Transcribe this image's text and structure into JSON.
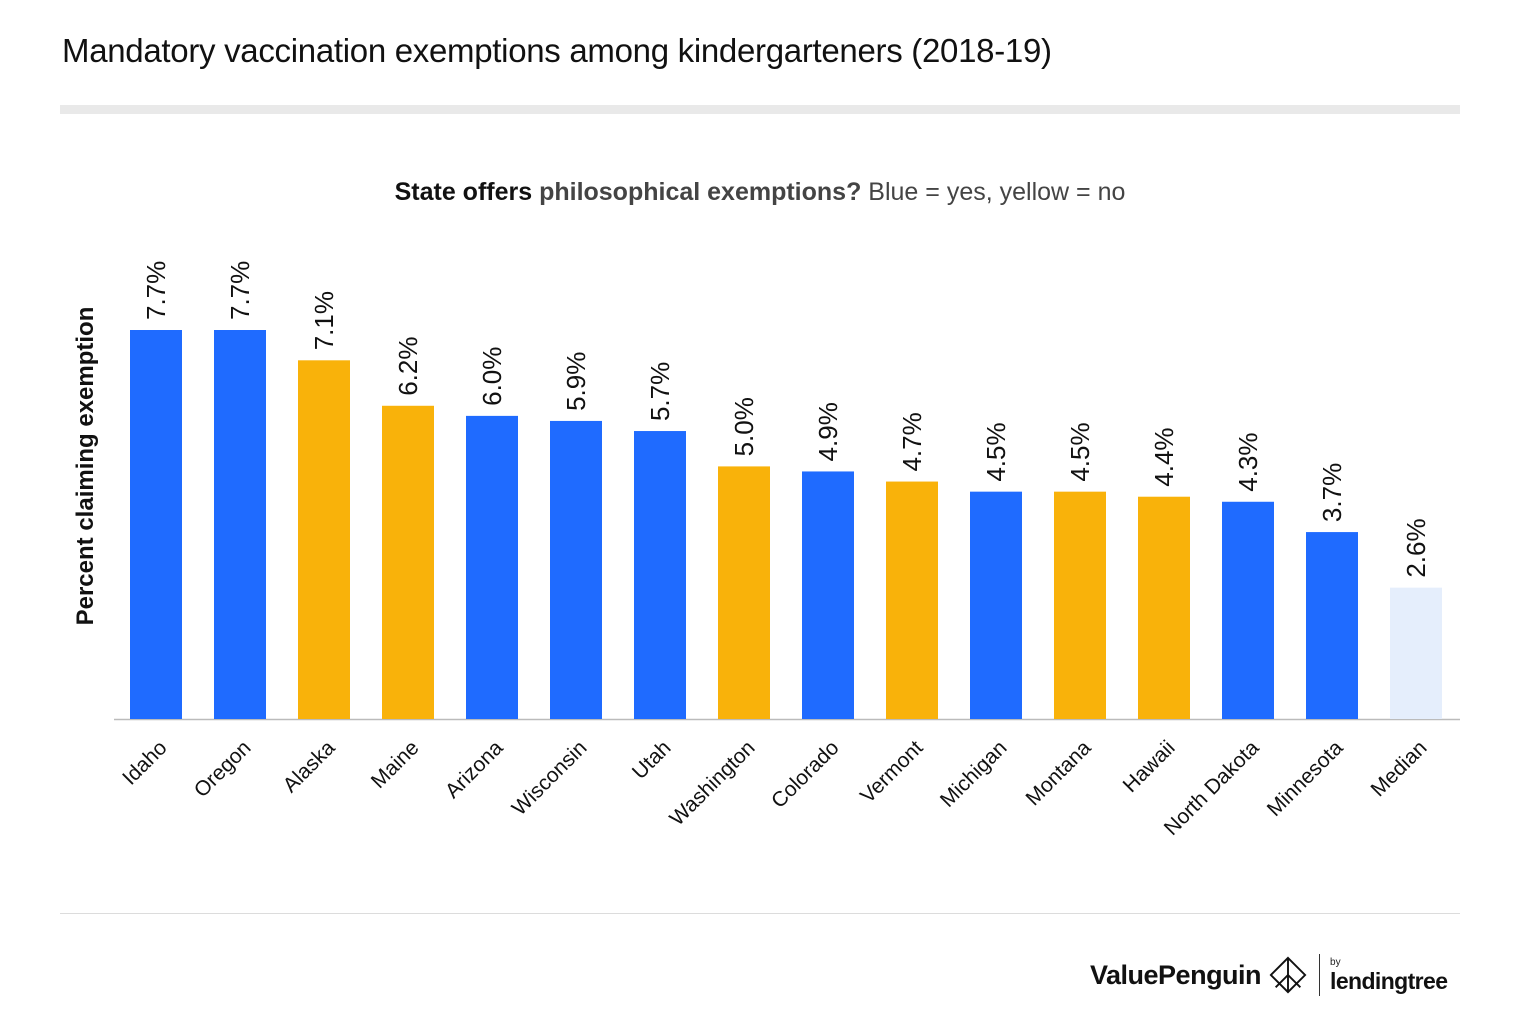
{
  "title": "Mandatory vaccination exemptions among kindergarteners (2018-19)",
  "subtitle": {
    "part1": "State offers ",
    "part2": "philosophical exemptions?",
    "part3": " Blue = yes, yellow = no"
  },
  "colors": {
    "yes": "#1f6bff",
    "no": "#f9b20a",
    "median": "#e5eefc",
    "axis": "#bbbbbb",
    "text": "#111111"
  },
  "chart_data": {
    "type": "bar",
    "title": "State offers philosophical exemptions? Blue = yes, yellow = no",
    "xlabel": "",
    "ylabel": "Percent claiming exemption",
    "ylim": [
      0,
      8
    ],
    "grid": false,
    "categories": [
      "Idaho",
      "Oregon",
      "Alaska",
      "Maine",
      "Arizona",
      "Wisconsin",
      "Utah",
      "Washington",
      "Colorado",
      "Vermont",
      "Michigan",
      "Montana",
      "Hawaii",
      "North Dakota",
      "Minnesota",
      "Median"
    ],
    "values": [
      7.7,
      7.7,
      7.1,
      6.2,
      6.0,
      5.9,
      5.7,
      5.0,
      4.9,
      4.7,
      4.5,
      4.5,
      4.4,
      4.3,
      3.7,
      2.6
    ],
    "labels": [
      "7.7%",
      "7.7%",
      "7.1%",
      "6.2%",
      "6.0%",
      "5.9%",
      "5.7%",
      "5.0%",
      "4.9%",
      "4.7%",
      "4.5%",
      "4.5%",
      "4.4%",
      "4.3%",
      "3.7%",
      "2.6%"
    ],
    "philosophical_exemption": [
      "yes",
      "yes",
      "no",
      "no",
      "yes",
      "yes",
      "yes",
      "no",
      "yes",
      "no",
      "yes",
      "no",
      "no",
      "yes",
      "yes",
      "median"
    ]
  },
  "footer": {
    "brand": "ValuePenguin",
    "by": "by",
    "partner": "lendingtree"
  }
}
